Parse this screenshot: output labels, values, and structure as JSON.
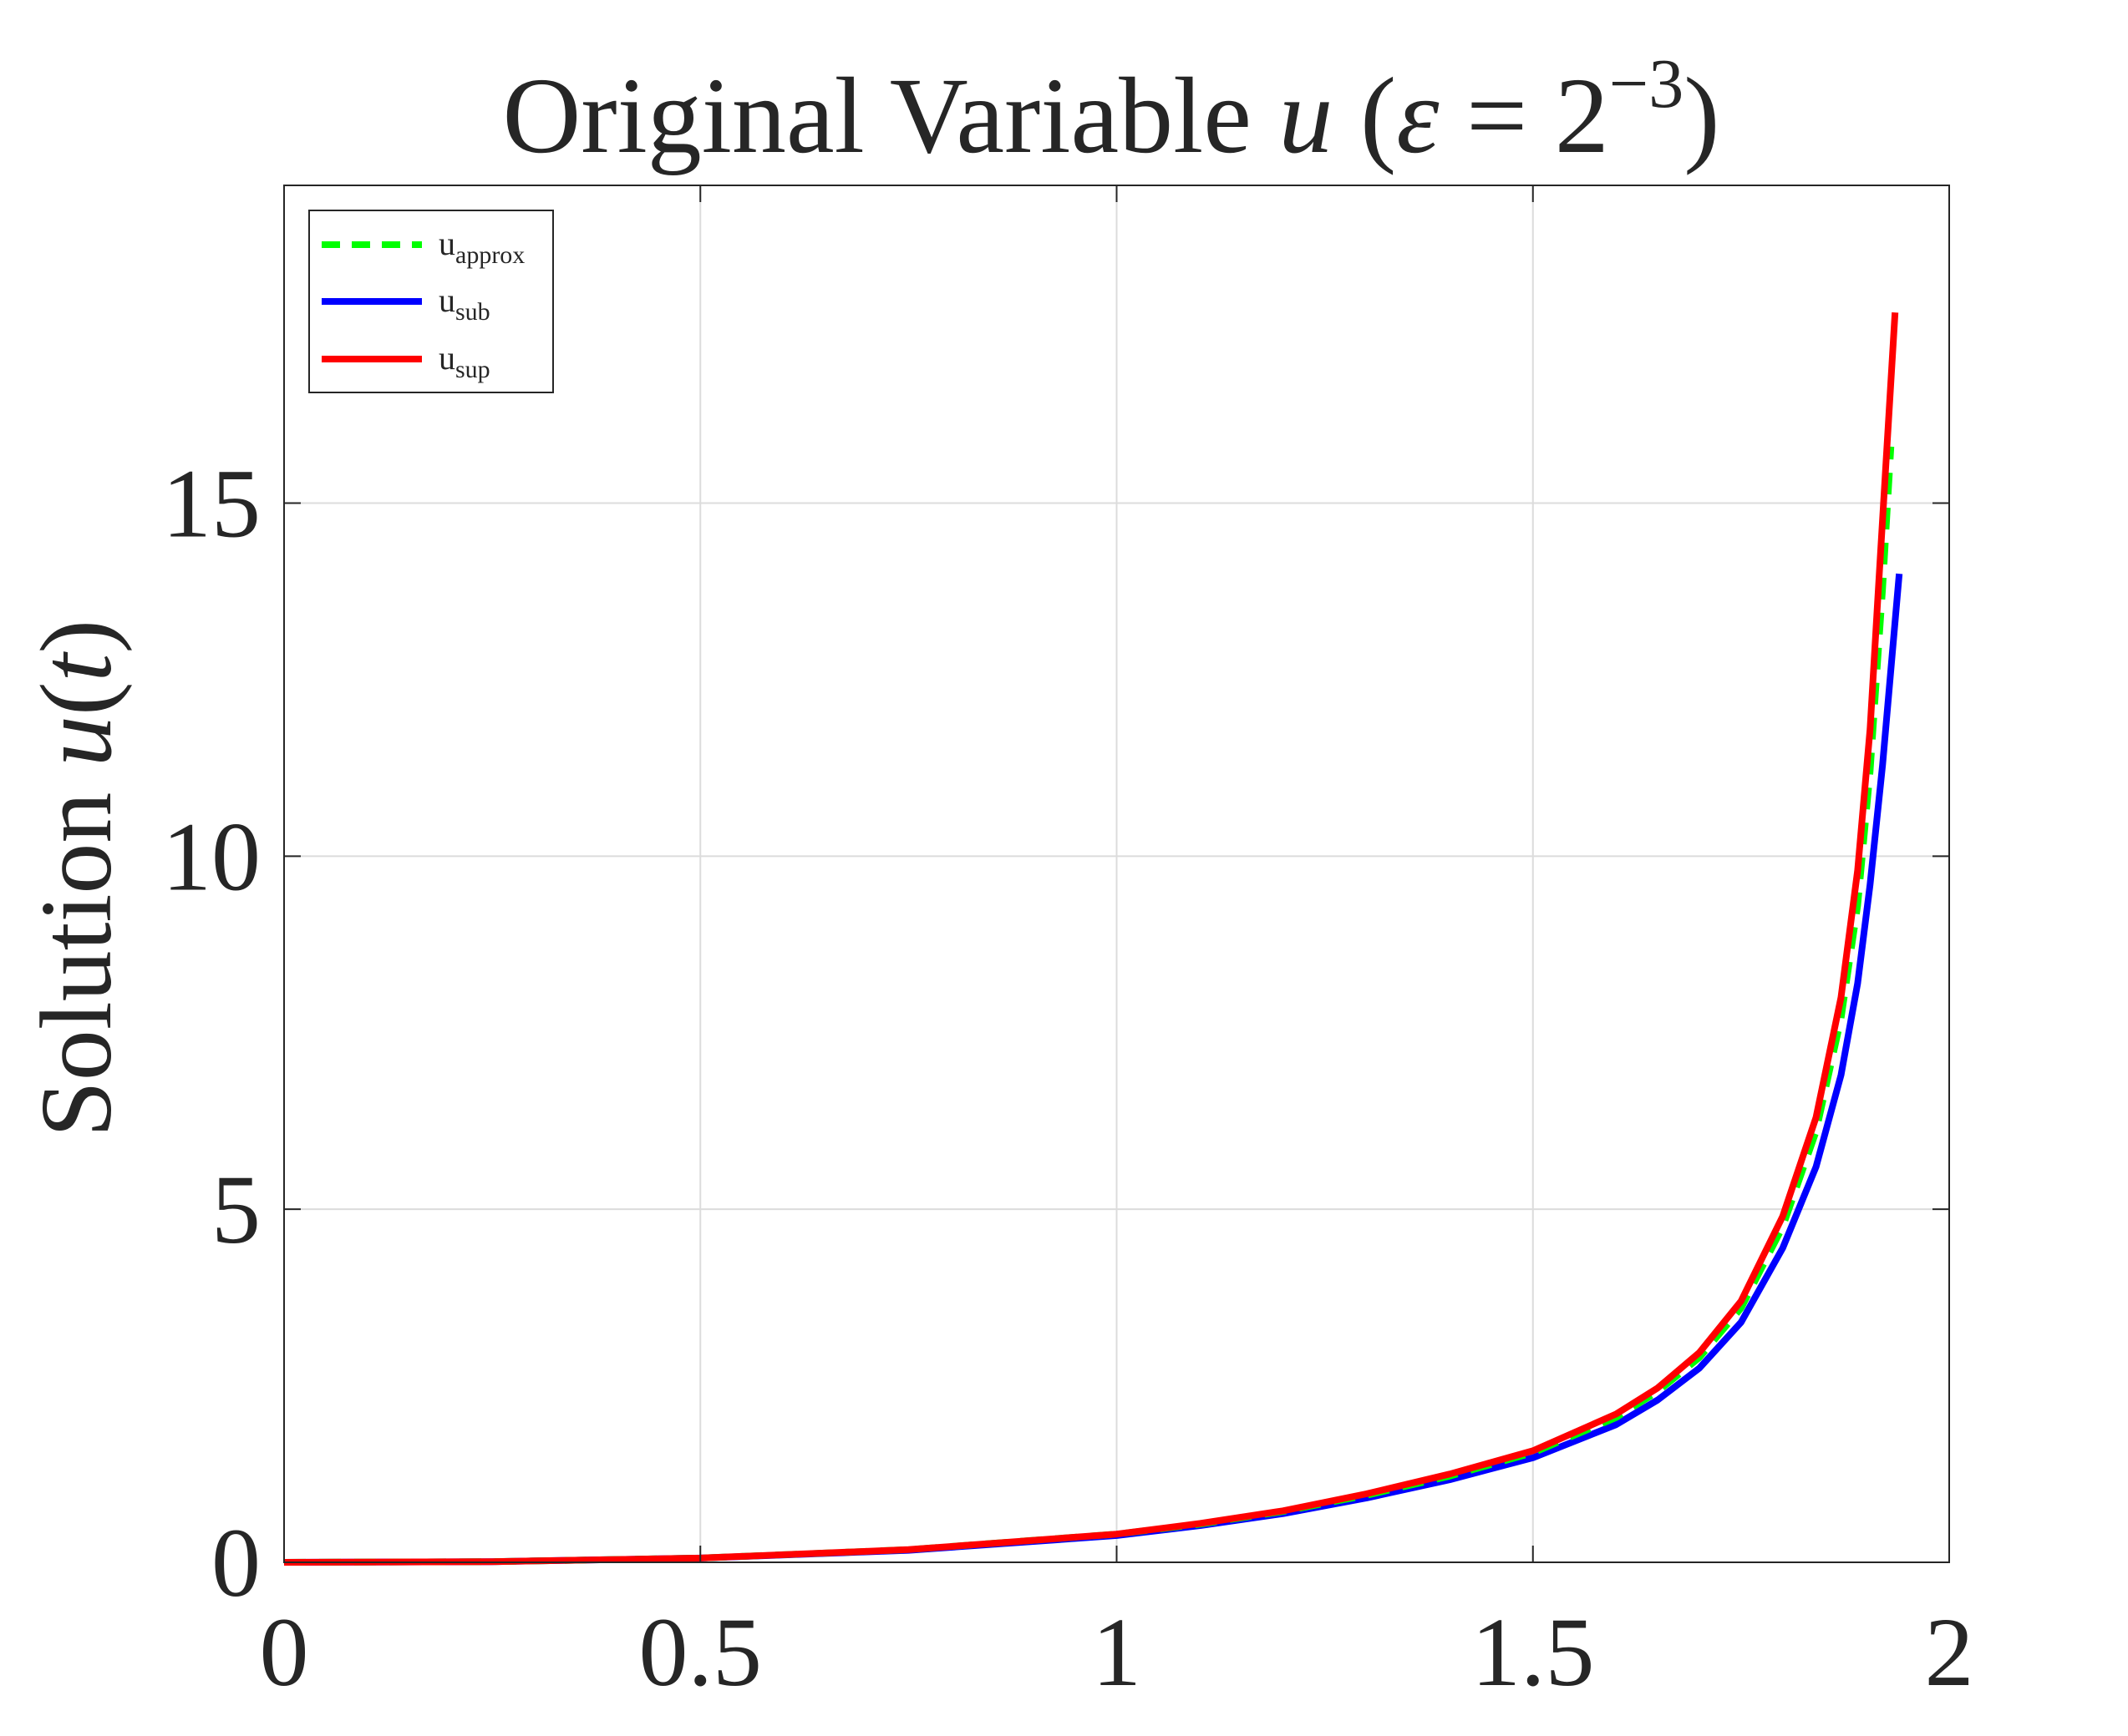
{
  "chart_data": {
    "type": "line",
    "title": {
      "prefix": "Original Variable ",
      "var": "u",
      "open": " (",
      "eps": "ε",
      "eq": " = 2",
      "exp": "−3",
      "close": ")"
    },
    "xlabel": "",
    "ylabel": {
      "prefix": "Solution ",
      "var": "u",
      "open": "(",
      "arg": "t",
      "close": ")"
    },
    "xlim": [
      0,
      2
    ],
    "ylim": [
      0,
      19.5
    ],
    "xticks": [
      0,
      0.5,
      1,
      1.5,
      2
    ],
    "xtick_labels": [
      "0",
      "0.5",
      "1",
      "1.5",
      "2"
    ],
    "yticks": [
      0,
      5,
      10,
      15
    ],
    "ytick_labels": [
      "0",
      "5",
      "10",
      "15"
    ],
    "grid": true,
    "legend_position": "top-left",
    "series": [
      {
        "name": "u_approx",
        "label_base": "u",
        "label_sub": "approx",
        "color": "#00ff00",
        "style": "dashed",
        "x": [
          0,
          0.25,
          0.5,
          0.75,
          1.0,
          1.1,
          1.2,
          1.3,
          1.4,
          1.5,
          1.6,
          1.65,
          1.7,
          1.75,
          1.8,
          1.84,
          1.87,
          1.89,
          1.905,
          1.92,
          1.93
        ],
        "y": [
          0,
          0.01,
          0.06,
          0.18,
          0.4,
          0.54,
          0.72,
          0.95,
          1.22,
          1.55,
          2.05,
          2.42,
          2.9,
          3.6,
          4.75,
          6.1,
          7.7,
          9.3,
          11.2,
          13.8,
          15.8
        ]
      },
      {
        "name": "u_sub",
        "label_base": "u",
        "label_sub": "sub",
        "color": "#0000ff",
        "style": "solid",
        "x": [
          0,
          0.25,
          0.5,
          0.75,
          1.0,
          1.1,
          1.2,
          1.3,
          1.4,
          1.5,
          1.6,
          1.65,
          1.7,
          1.75,
          1.8,
          1.84,
          1.87,
          1.89,
          1.905,
          1.92,
          1.94
        ],
        "y": [
          0,
          0.01,
          0.06,
          0.17,
          0.38,
          0.52,
          0.69,
          0.91,
          1.17,
          1.48,
          1.95,
          2.3,
          2.75,
          3.4,
          4.45,
          5.6,
          6.9,
          8.2,
          9.6,
          11.3,
          14.0
        ]
      },
      {
        "name": "u_sup",
        "label_base": "u",
        "label_sub": "sup",
        "color": "#ff0000",
        "style": "solid",
        "x": [
          0,
          0.25,
          0.5,
          0.75,
          1.0,
          1.1,
          1.2,
          1.3,
          1.4,
          1.5,
          1.6,
          1.65,
          1.7,
          1.75,
          1.8,
          1.84,
          1.87,
          1.89,
          1.905,
          1.915,
          1.935
        ],
        "y": [
          0,
          0.01,
          0.06,
          0.18,
          0.4,
          0.55,
          0.73,
          0.97,
          1.25,
          1.58,
          2.1,
          2.47,
          2.97,
          3.7,
          4.9,
          6.3,
          8.0,
          9.8,
          11.8,
          13.8,
          17.7
        ]
      }
    ]
  }
}
